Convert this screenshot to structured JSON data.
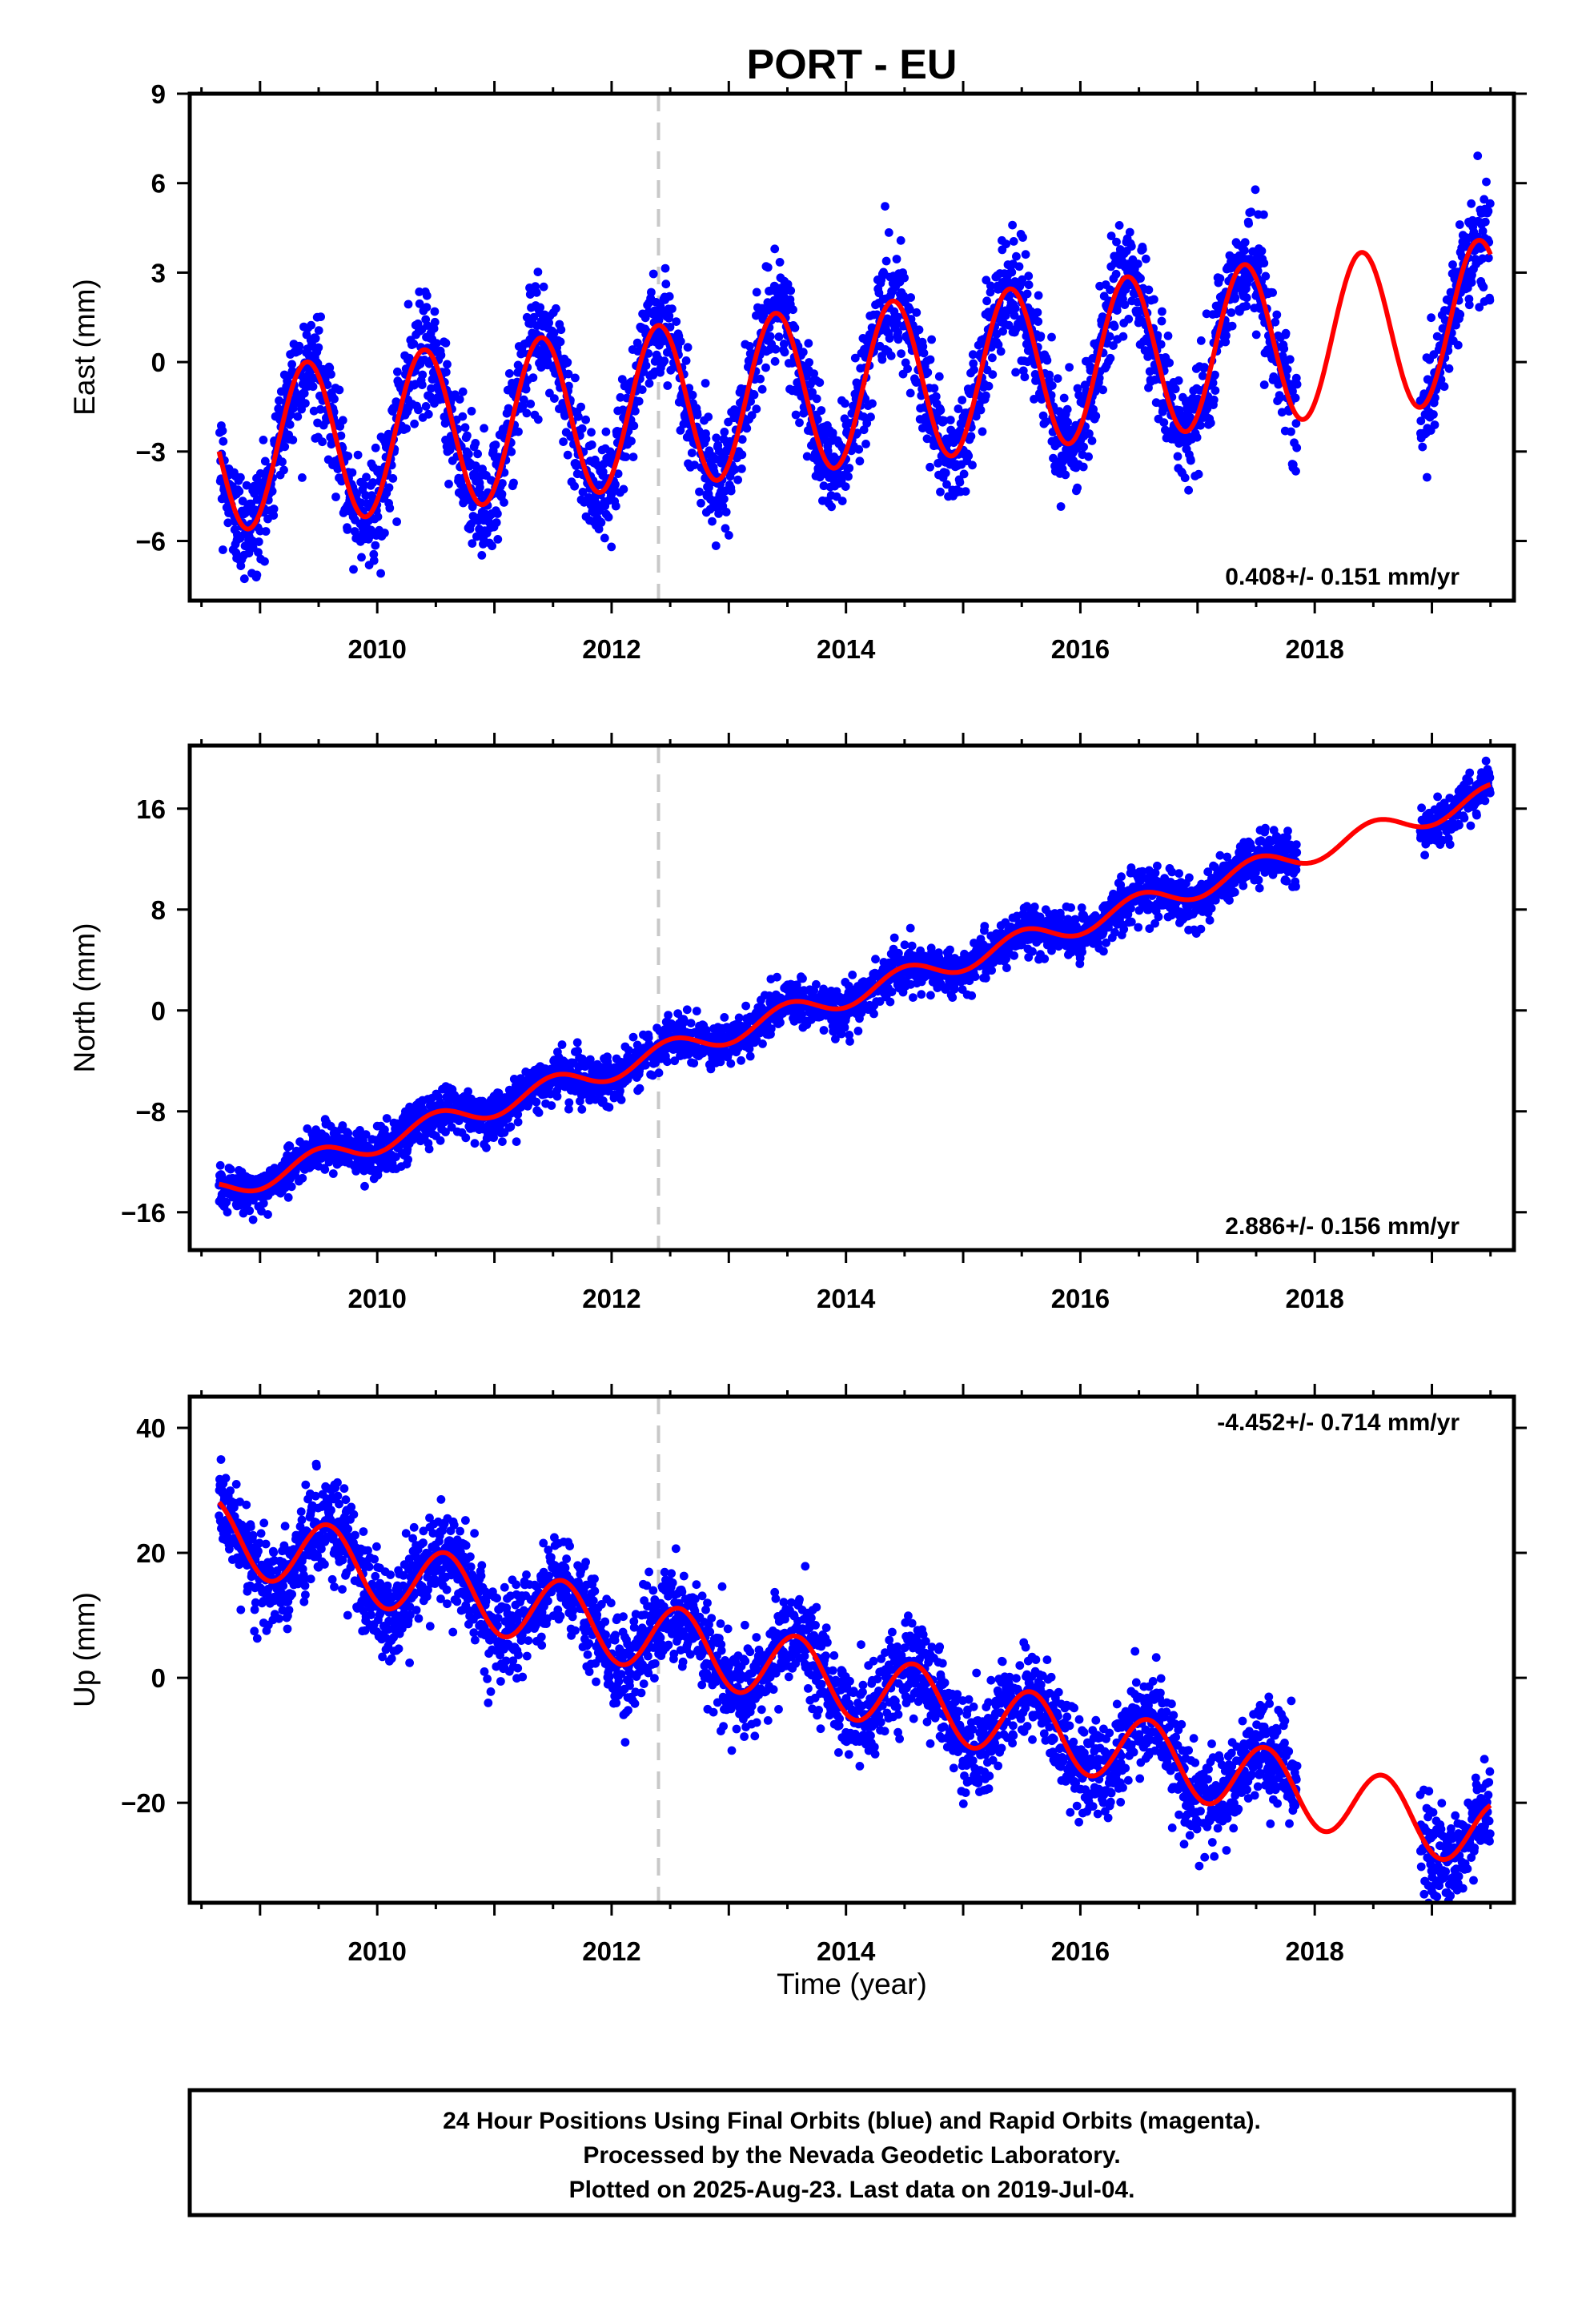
{
  "title": "PORT - EU",
  "footer": {
    "lines": [
      "24 Hour Positions Using Final Orbits (blue) and Rapid Orbits (magenta).",
      "Processed by the Nevada Geodetic Laboratory.",
      "Plotted on 2025-Aug-23. Last data on 2019-Jul-04."
    ]
  },
  "colors": {
    "data": "#0000ff",
    "model": "#ff0000",
    "event_line": "#c8c8c8",
    "frame": "#000000"
  },
  "xlabel": "Time (year)",
  "chart_data": [
    {
      "type": "scatter",
      "component": "East",
      "ylabel": "East (mm)",
      "rate_label": "0.408+/- 0.151 mm/yr",
      "rate_position": "bottom-right",
      "xlim": [
        2008.4,
        2019.7
      ],
      "ylim": [
        -8,
        9
      ],
      "xticks": [
        2010,
        2012,
        2014,
        2016,
        2018
      ],
      "yticks": [
        -6,
        -3,
        0,
        3,
        6,
        9
      ],
      "data_span": [
        2008.65,
        2019.5
      ],
      "data_gap": [
        2017.85,
        2018.9
      ],
      "event_line_x": 2012.4,
      "model": {
        "offset": -3.0,
        "rate": 0.408,
        "amplitude": 2.7,
        "peak_phase": 0.4
      },
      "scatter_sd": 0.9
    },
    {
      "type": "scatter",
      "component": "North",
      "ylabel": "North (mm)",
      "rate_label": "2.886+/- 0.156 mm/yr",
      "rate_position": "bottom-right",
      "xlim": [
        2008.4,
        2019.7
      ],
      "ylim": [
        -19,
        21
      ],
      "xticks": [
        2010,
        2012,
        2014,
        2016,
        2018
      ],
      "yticks": [
        -16,
        -8,
        0,
        8,
        16
      ],
      "data_span": [
        2008.65,
        2019.5
      ],
      "data_gap": [
        2017.85,
        2018.9
      ],
      "event_line_x": 2012.4,
      "model": {
        "offset": -14.3,
        "rate": 2.886,
        "amplitude": 0.9,
        "peak_phase": 0.5
      },
      "scatter_sd": 0.9
    },
    {
      "type": "scatter",
      "component": "Up",
      "ylabel": "Up (mm)",
      "rate_label": "-4.452+/- 0.714 mm/yr",
      "rate_position": "top-right",
      "xlim": [
        2008.4,
        2019.7
      ],
      "ylim": [
        -36,
        45
      ],
      "xticks": [
        2010,
        2012,
        2014,
        2016,
        2018
      ],
      "yticks": [
        -20,
        0,
        20,
        40
      ],
      "data_span": [
        2008.65,
        2019.5
      ],
      "data_gap": [
        2017.85,
        2018.9
      ],
      "event_line_x": 2012.4,
      "model": {
        "offset": 23.0,
        "rate": -4.452,
        "amplitude": 5.6,
        "peak_phase": 0.58
      },
      "scatter_sd": 3.8
    }
  ]
}
